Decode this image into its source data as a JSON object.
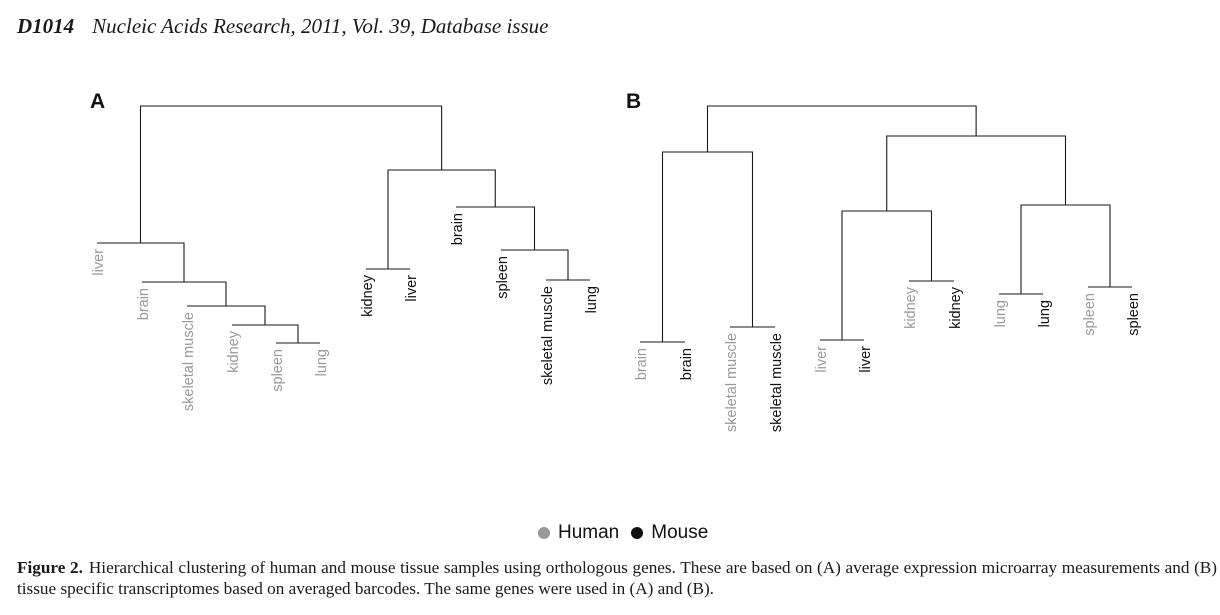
{
  "header": {
    "page": "D1014",
    "journal": "Nucleic Acids Research, 2011, Vol. 39, Database issue"
  },
  "colors": {
    "human": "#999999",
    "mouse": "#111111",
    "line": "#1a1a1a"
  },
  "panels": [
    {
      "label": "A",
      "leaves": [
        {
          "label": "liver",
          "species": "human"
        },
        {
          "label": "brain",
          "species": "human"
        },
        {
          "label": "skeletal muscle",
          "species": "human"
        },
        {
          "label": "kidney",
          "species": "human"
        },
        {
          "label": "spleen",
          "species": "human"
        },
        {
          "label": "lung",
          "species": "human"
        },
        {
          "label": "kidney",
          "species": "mouse"
        },
        {
          "label": "liver",
          "species": "mouse"
        },
        {
          "label": "brain",
          "species": "mouse"
        },
        {
          "label": "spleen",
          "species": "mouse"
        },
        {
          "label": "skeletal muscle",
          "species": "mouse"
        },
        {
          "label": "lung",
          "species": "mouse"
        }
      ]
    },
    {
      "label": "B",
      "leaves": [
        {
          "label": "brain",
          "species": "human"
        },
        {
          "label": "brain",
          "species": "mouse"
        },
        {
          "label": "skeletal muscle",
          "species": "human"
        },
        {
          "label": "skeletal muscle",
          "species": "mouse"
        },
        {
          "label": "liver",
          "species": "human"
        },
        {
          "label": "liver",
          "species": "mouse"
        },
        {
          "label": "kidney",
          "species": "human"
        },
        {
          "label": "kidney",
          "species": "mouse"
        },
        {
          "label": "lung",
          "species": "human"
        },
        {
          "label": "lung",
          "species": "mouse"
        },
        {
          "label": "spleen",
          "species": "human"
        },
        {
          "label": "spleen",
          "species": "mouse"
        }
      ]
    }
  ],
  "legend": [
    {
      "label": "Human",
      "species": "human"
    },
    {
      "label": "Mouse",
      "species": "mouse"
    }
  ],
  "caption": {
    "figure_label": "Figure 2.",
    "text": "Hierarchical clustering of human and mouse tissue samples using orthologous genes. These are based on (A) average expression microarray measurements and (B) tissue specific transcriptomes based on averaged barcodes. The same genes were used in (A) and (B)."
  }
}
